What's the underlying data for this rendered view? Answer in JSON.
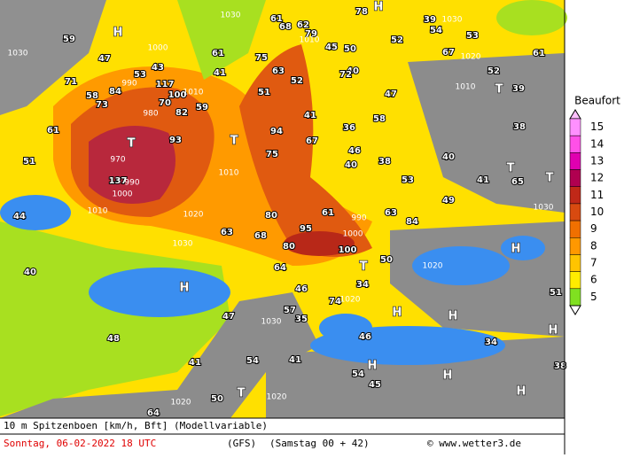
{
  "map": {
    "gusts": [
      "59",
      "47",
      "71",
      "58",
      "84",
      "73",
      "53",
      "43",
      "117",
      "100",
      "70",
      "82",
      "59",
      "61",
      "93",
      "137",
      "51",
      "41",
      "61",
      "75",
      "63",
      "51",
      "52",
      "61",
      "68",
      "62",
      "79",
      "45",
      "50",
      "78",
      "40",
      "72",
      "52",
      "39",
      "54",
      "53",
      "67",
      "52",
      "61",
      "47",
      "58",
      "41",
      "94",
      "67",
      "75",
      "36",
      "38",
      "46",
      "40",
      "53",
      "40",
      "39",
      "38",
      "41",
      "65",
      "49",
      "80",
      "61",
      "63",
      "84",
      "95",
      "68",
      "80",
      "63",
      "100",
      "50",
      "34",
      "64",
      "46",
      "74",
      "57",
      "35",
      "47",
      "48",
      "41",
      "54",
      "41",
      "46",
      "54",
      "45",
      "34",
      "38",
      "51",
      "40",
      "50",
      "64",
      "44"
    ],
    "isobars": [
      "1030",
      "1030",
      "1020",
      "1010",
      "1000",
      "990",
      "980",
      "970",
      "990",
      "1000",
      "1010",
      "1020",
      "1030",
      "1010",
      "1010",
      "1020",
      "990",
      "1000",
      "1020",
      "1030",
      "1020",
      "1020",
      "1030",
      "1030",
      "1010"
    ],
    "centers": [
      "H",
      "H",
      "T",
      "T",
      "T",
      "T",
      "T",
      "H",
      "H",
      "H",
      "H",
      "H",
      "H",
      "H",
      "H",
      "T",
      "T"
    ]
  },
  "legend": {
    "title": "Beaufort",
    "levels": [
      {
        "value": 15,
        "color": "#ff90ff"
      },
      {
        "value": 14,
        "color": "#ff50e8"
      },
      {
        "value": 13,
        "color": "#e000b0"
      },
      {
        "value": 12,
        "color": "#b00050"
      },
      {
        "value": 11,
        "color": "#c02818"
      },
      {
        "value": 10,
        "color": "#d84a10"
      },
      {
        "value": 9,
        "color": "#f07000"
      },
      {
        "value": 8,
        "color": "#ff9800"
      },
      {
        "value": 7,
        "color": "#ffc400"
      },
      {
        "value": 6,
        "color": "#ffec00"
      },
      {
        "value": 5,
        "color": "#80e020"
      }
    ]
  },
  "footer": {
    "title": "10 m Spitzenboen [km/h, Bft] (Modellvariable)",
    "date": "Sonntag, 06-02-2022  18 UTC",
    "model": "(GFS)",
    "run": "(Samstag 00 + 42)",
    "credit": "© www.wetter3.de"
  }
}
